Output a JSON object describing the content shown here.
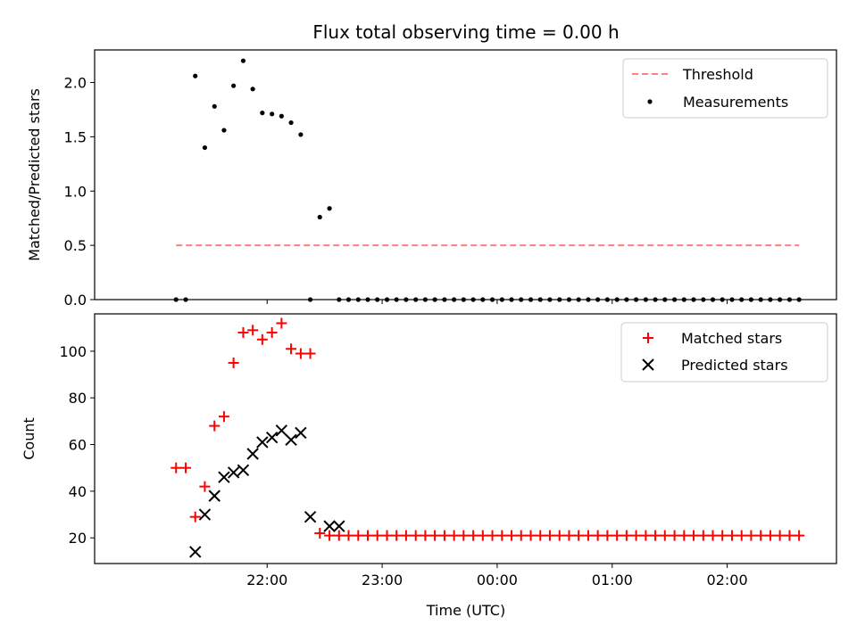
{
  "figure": {
    "title": "Flux total observing time = 0.00 h",
    "xlabel": "Time (UTC)",
    "x_tick_labels": [
      "22:00",
      "23:00",
      "00:00",
      "01:00",
      "02:00"
    ]
  },
  "chart_data": [
    {
      "type": "scatter",
      "ylabel": "Matched/Predicted stars",
      "ylim": [
        0,
        2.3
      ],
      "y_ticks": [
        0,
        0.5,
        1.0,
        1.5,
        2.0
      ],
      "y_tick_labels": [
        "0.0",
        "0.5",
        "1.0",
        "1.5",
        "2.0"
      ],
      "legend_position": "top-right",
      "threshold": {
        "name": "Threshold",
        "value": 0.5,
        "color": "#ff7f7f"
      },
      "series": [
        {
          "name": "Measurements",
          "color": "#000000",
          "marker": "dot",
          "x": [
            -0.792,
            -0.708,
            -0.625,
            -0.542,
            -0.458,
            -0.375,
            -0.292,
            -0.208,
            -0.125,
            -0.042,
            0.042,
            0.125,
            0.208,
            0.292,
            0.375,
            0.458,
            0.542,
            0.625,
            0.708,
            0.792,
            0.875,
            0.958,
            1.042,
            1.125,
            1.208,
            1.292,
            1.375,
            1.458,
            1.542,
            1.625,
            1.708,
            1.792,
            1.875,
            1.958,
            2.042,
            2.125,
            2.208,
            2.292,
            2.375,
            2.458,
            2.542,
            2.625,
            2.708,
            2.792,
            2.875,
            2.958,
            3.042,
            3.125,
            3.208,
            3.292,
            3.375,
            3.458,
            3.542,
            3.625,
            3.708,
            3.792,
            3.875,
            3.958,
            4.042,
            4.125,
            4.208,
            4.292,
            4.375,
            4.458,
            4.542,
            4.625
          ],
          "y": [
            0.0,
            0.0,
            2.06,
            1.4,
            1.78,
            1.56,
            1.97,
            2.2,
            1.94,
            1.72,
            1.71,
            1.69,
            1.63,
            1.52,
            0.0,
            0.76,
            0.84,
            0.0,
            0.0,
            0.0,
            0.0,
            0.0,
            0.0,
            0.0,
            0.0,
            0.0,
            0.0,
            0.0,
            0.0,
            0.0,
            0.0,
            0.0,
            0.0,
            0.0,
            0.0,
            0.0,
            0.0,
            0.0,
            0.0,
            0.0,
            0.0,
            0.0,
            0.0,
            0.0,
            0.0,
            0.0,
            0.0,
            0.0,
            0.0,
            0.0,
            0.0,
            0.0,
            0.0,
            0.0,
            0.0,
            0.0,
            0.0,
            0.0,
            0.0,
            0.0,
            0.0,
            0.0,
            0.0,
            0.0,
            0.0,
            0.0
          ]
        }
      ]
    },
    {
      "type": "scatter",
      "ylabel": "Count",
      "ylim": [
        9,
        116
      ],
      "y_ticks": [
        20,
        40,
        60,
        80,
        100
      ],
      "y_tick_labels": [
        "20",
        "40",
        "60",
        "80",
        "100"
      ],
      "legend_position": "top-right",
      "series": [
        {
          "name": "Matched stars",
          "color": "#ff0000",
          "marker": "plus",
          "x": [
            -0.792,
            -0.708,
            -0.625,
            -0.542,
            -0.458,
            -0.375,
            -0.292,
            -0.208,
            -0.125,
            -0.042,
            0.042,
            0.125,
            0.208,
            0.292,
            0.375,
            0.458,
            0.542,
            0.625,
            0.708,
            0.792,
            0.875,
            0.958,
            1.042,
            1.125,
            1.208,
            1.292,
            1.375,
            1.458,
            1.542,
            1.625,
            1.708,
            1.792,
            1.875,
            1.958,
            2.042,
            2.125,
            2.208,
            2.292,
            2.375,
            2.458,
            2.542,
            2.625,
            2.708,
            2.792,
            2.875,
            2.958,
            3.042,
            3.125,
            3.208,
            3.292,
            3.375,
            3.458,
            3.542,
            3.625,
            3.708,
            3.792,
            3.875,
            3.958,
            4.042,
            4.125,
            4.208,
            4.292,
            4.375,
            4.458,
            4.542,
            4.625
          ],
          "y": [
            50,
            50,
            29,
            42,
            68,
            72,
            95,
            108,
            109,
            105,
            108,
            112,
            101,
            99,
            99,
            22,
            21,
            21,
            21,
            21,
            21,
            21,
            21,
            21,
            21,
            21,
            21,
            21,
            21,
            21,
            21,
            21,
            21,
            21,
            21,
            21,
            21,
            21,
            21,
            21,
            21,
            21,
            21,
            21,
            21,
            21,
            21,
            21,
            21,
            21,
            21,
            21,
            21,
            21,
            21,
            21,
            21,
            21,
            21,
            21,
            21,
            21,
            21,
            21,
            21,
            21
          ]
        },
        {
          "name": "Predicted stars",
          "color": "#000000",
          "marker": "x",
          "x": [
            -0.625,
            -0.542,
            -0.458,
            -0.375,
            -0.292,
            -0.208,
            -0.125,
            -0.042,
            0.042,
            0.125,
            0.208,
            0.292,
            0.375,
            0.542,
            0.625
          ],
          "y": [
            14,
            30,
            38,
            46,
            48,
            49,
            56,
            61,
            63,
            66,
            62,
            65,
            29,
            25,
            25
          ]
        }
      ]
    }
  ]
}
